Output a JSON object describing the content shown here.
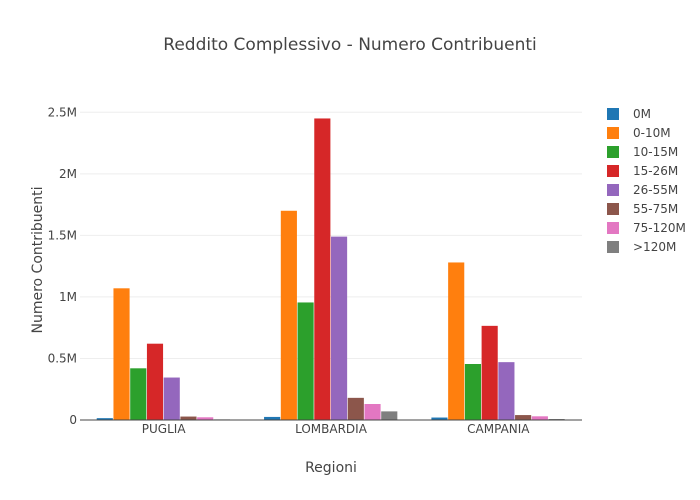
{
  "chart_data": {
    "type": "bar",
    "title": "Reddito Complessivo - Numero Contribuenti",
    "xlabel": "Regioni",
    "ylabel": "Numero Contribuenti",
    "categories": [
      "PUGLIA",
      "LOMBARDIA",
      "CAMPANIA"
    ],
    "ylim": [
      0,
      2600000
    ],
    "yticks": [
      0,
      500000,
      1000000,
      1500000,
      2000000,
      2500000
    ],
    "ytick_labels": [
      "0",
      "0.5M",
      "1M",
      "1.5M",
      "2M",
      "2.5M"
    ],
    "grid": true,
    "legend_position": "right",
    "series": [
      {
        "name": "0M",
        "color": "#1f77b4",
        "values": [
          15000,
          25000,
          20000
        ]
      },
      {
        "name": "0-10M",
        "color": "#ff7f0e",
        "values": [
          1070000,
          1700000,
          1280000
        ]
      },
      {
        "name": "10-15M",
        "color": "#2ca02c",
        "values": [
          420000,
          955000,
          455000
        ]
      },
      {
        "name": "15-26M",
        "color": "#d62728",
        "values": [
          620000,
          2450000,
          765000
        ]
      },
      {
        "name": "26-55M",
        "color": "#9467bd",
        "values": [
          345000,
          1490000,
          470000
        ]
      },
      {
        "name": "55-75M",
        "color": "#8c564b",
        "values": [
          28000,
          180000,
          40000
        ]
      },
      {
        "name": "75-120M",
        "color": "#e377c2",
        "values": [
          22000,
          130000,
          30000
        ]
      },
      {
        "name": ">120M",
        "color": "#7f7f7f",
        "values": [
          5000,
          70000,
          8000
        ]
      }
    ]
  }
}
